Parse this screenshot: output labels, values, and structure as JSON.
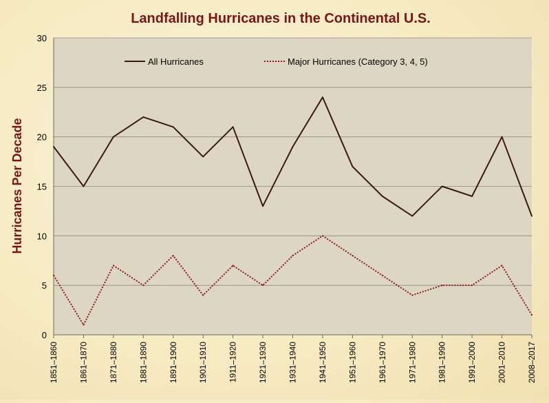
{
  "chart_data": {
    "type": "line",
    "title": "Landfalling Hurricanes in the Continental U.S.",
    "ylabel": "Hurricanes Per Decade",
    "xlabel": "",
    "ylim": [
      0,
      30
    ],
    "yticks": [
      0,
      5,
      10,
      15,
      20,
      25,
      30
    ],
    "grid": true,
    "legend_position": "top",
    "categories": [
      "1851–1860",
      "1861–1870",
      "1871–1880",
      "1881–1890",
      "1891–1900",
      "1901–1910",
      "1911–1920",
      "1921–1930",
      "1931–1940",
      "1941–1950",
      "1951–1960",
      "1961–1970",
      "1971–1980",
      "1981–1990",
      "1991–2000",
      "2001–2010",
      "2008–2017"
    ],
    "series": [
      {
        "name": "All Hurricanes",
        "style": "solid",
        "color": "#3a1a12",
        "values": [
          19,
          15,
          20,
          22,
          21,
          18,
          21,
          13,
          19,
          24,
          17,
          14,
          12,
          15,
          14,
          20,
          12
        ]
      },
      {
        "name": "Major Hurricanes (Category 3, 4, 5)",
        "style": "dotted",
        "color": "#8b1a1a",
        "values": [
          6,
          1,
          7,
          5,
          8,
          4,
          7,
          5,
          8,
          10,
          8,
          6,
          4,
          5,
          5,
          7,
          2
        ]
      }
    ],
    "colors": {
      "title": "#7a1515",
      "ylabel": "#7a1515",
      "plot_bg": "#dcd6c2",
      "grid": "#8a8a80"
    }
  }
}
